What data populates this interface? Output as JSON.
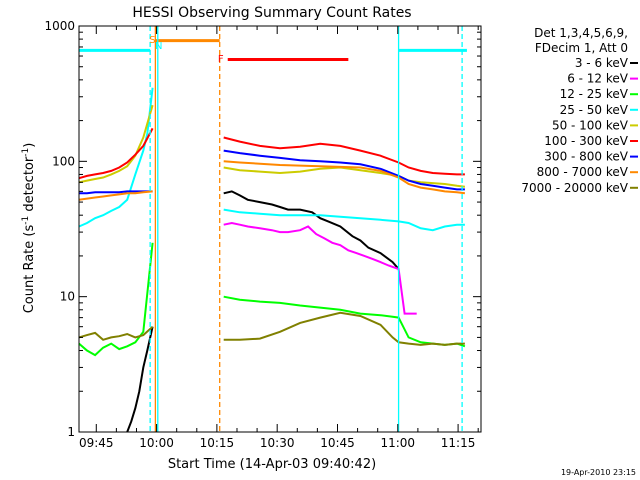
{
  "chart_data": {
    "type": "line",
    "title": "HESSI Observing Summary Count Rates",
    "xlabel": "Start Time (14-Apr-03 09:40:42)",
    "ylabel_main": "Count Rate (s",
    "ylabel_sup1": "-1",
    "ylabel_mid": " detector",
    "ylabel_sup2": "-1",
    "ylabel_end": ")",
    "xlim_minutes": [
      0,
      100
    ],
    "ylim": [
      1,
      1000
    ],
    "yscale": "log",
    "x_ticks": [
      {
        "label": "09:45",
        "min": 4.3
      },
      {
        "label": "10:00",
        "min": 19.3
      },
      {
        "label": "10:15",
        "min": 34.3
      },
      {
        "label": "10:30",
        "min": 49.3
      },
      {
        "label": "10:45",
        "min": 64.3
      },
      {
        "label": "11:00",
        "min": 79.3
      },
      {
        "label": "11:15",
        "min": 94.3
      }
    ],
    "y_ticks": [
      {
        "label": "1",
        "value": 1
      },
      {
        "label": "10",
        "value": 10
      },
      {
        "label": "100",
        "value": 100
      },
      {
        "label": "1000",
        "value": 1000
      }
    ],
    "legend_header": [
      "Det 1,3,4,5,6,9,",
      "FDecim 1, Att 0"
    ],
    "legend_position": "right",
    "series": [
      {
        "name": "3 - 6 keV",
        "color": "#000000",
        "x": [
          12,
          13,
          14,
          15,
          16,
          17,
          18.3,
          36,
          38,
          40,
          42,
          45,
          48,
          50,
          52,
          55,
          58,
          60,
          62,
          65,
          68,
          70,
          72,
          75,
          78,
          79.5
        ],
        "y": [
          1,
          1.2,
          1.5,
          2,
          3,
          4,
          6,
          58,
          60,
          56,
          52,
          50,
          48,
          46,
          44,
          44,
          42,
          38,
          36,
          33,
          28,
          26,
          23,
          21,
          18,
          16
        ]
      },
      {
        "name": "6 - 12 keV",
        "color": "#ff00ff",
        "x": [
          36,
          38,
          40,
          42,
          45,
          48,
          50,
          52,
          55,
          57,
          59,
          61,
          63,
          65,
          67,
          69,
          71,
          73,
          75,
          77,
          79.5,
          81,
          82,
          83,
          84
        ],
        "y": [
          34,
          35,
          34,
          33,
          32,
          31,
          30,
          30,
          31,
          33,
          29,
          27,
          25,
          24,
          22,
          21,
          20,
          19,
          18,
          17,
          16,
          7.5,
          7.5,
          7.5,
          7.5
        ]
      },
      {
        "name": "12 - 25 keV",
        "color": "#00ff00",
        "x": [
          0,
          2,
          4,
          6,
          8,
          10,
          12,
          14,
          16,
          18.3,
          36,
          40,
          45,
          50,
          55,
          60,
          65,
          70,
          75,
          78,
          79.5,
          82,
          85,
          88,
          91,
          94,
          96
        ],
        "y": [
          4.5,
          4,
          3.7,
          4.2,
          4.5,
          4.1,
          4.3,
          4.6,
          5.5,
          25,
          10,
          9.5,
          9.2,
          9,
          8.6,
          8.3,
          8,
          7.5,
          7.3,
          7.1,
          7,
          5,
          4.6,
          4.5,
          4.4,
          4.5,
          4.3
        ]
      },
      {
        "name": "25 - 50 keV",
        "color": "#00ffff",
        "x": [
          0,
          2,
          4,
          6,
          8,
          10,
          12,
          14,
          16,
          17,
          18.3,
          36,
          40,
          45,
          50,
          55,
          60,
          65,
          70,
          75,
          79.5,
          82,
          85,
          88,
          91,
          94,
          96
        ],
        "y": [
          33,
          35,
          38,
          40,
          43,
          46,
          52,
          80,
          120,
          160,
          350,
          44,
          42,
          41,
          40,
          40,
          40,
          39,
          38,
          37,
          36,
          35,
          32,
          31,
          33,
          34,
          34
        ]
      },
      {
        "name": "50 - 100 keV",
        "color": "#cccc00",
        "x": [
          0,
          2,
          4,
          6,
          8,
          10,
          12,
          14,
          16,
          18.3,
          36,
          40,
          45,
          50,
          55,
          60,
          65,
          70,
          75,
          79.5,
          82,
          85,
          88,
          91,
          94,
          96
        ],
        "y": [
          70,
          72,
          74,
          76,
          80,
          85,
          92,
          110,
          150,
          260,
          90,
          86,
          84,
          82,
          84,
          88,
          90,
          86,
          82,
          78,
          72,
          70,
          69,
          68,
          66,
          65
        ]
      },
      {
        "name": "100 - 300 keV",
        "color": "#ff0000",
        "x": [
          0,
          2,
          4,
          6,
          8,
          10,
          12,
          14,
          16,
          18.3,
          36,
          40,
          45,
          50,
          55,
          60,
          65,
          70,
          75,
          79.5,
          82,
          85,
          88,
          91,
          94,
          96
        ],
        "y": [
          75,
          78,
          80,
          82,
          85,
          90,
          98,
          112,
          130,
          175,
          150,
          140,
          130,
          125,
          128,
          135,
          130,
          120,
          110,
          98,
          90,
          85,
          82,
          81,
          80,
          80
        ]
      },
      {
        "name": "300 - 800 keV",
        "color": "#0000ff",
        "x": [
          0,
          2,
          4,
          6,
          8,
          10,
          12,
          14,
          16,
          18.3,
          36,
          40,
          45,
          50,
          55,
          60,
          65,
          70,
          75,
          79.5,
          82,
          85,
          88,
          91,
          94,
          96
        ],
        "y": [
          58,
          58,
          59,
          59,
          59,
          59,
          60,
          60,
          60,
          60,
          120,
          115,
          110,
          106,
          102,
          100,
          98,
          95,
          88,
          78,
          72,
          68,
          66,
          64,
          62,
          62
        ]
      },
      {
        "name": "800 - 7000 keV",
        "color": "#ff8800",
        "x": [
          0,
          2,
          4,
          6,
          8,
          10,
          12,
          14,
          16,
          18.3,
          36,
          40,
          45,
          50,
          55,
          60,
          65,
          70,
          75,
          79.5,
          82,
          85,
          88,
          91,
          94,
          96
        ],
        "y": [
          52,
          53,
          54,
          55,
          56,
          57,
          58,
          58,
          59,
          60,
          100,
          98,
          96,
          94,
          93,
          92,
          91,
          90,
          85,
          76,
          68,
          64,
          62,
          60,
          59,
          58
        ]
      },
      {
        "name": "7000 - 20000 keV",
        "color": "#808000",
        "x": [
          0,
          2,
          4,
          6,
          8,
          10,
          12,
          14,
          16,
          18.3,
          36,
          40,
          45,
          50,
          55,
          60,
          65,
          70,
          75,
          78,
          79.5,
          82,
          85,
          88,
          91,
          94,
          96
        ],
        "y": [
          5,
          5.2,
          5.4,
          4.8,
          5,
          5.1,
          5.3,
          5,
          5.2,
          6,
          4.8,
          4.8,
          4.9,
          5.5,
          6.4,
          7,
          7.6,
          7.2,
          6.2,
          5,
          4.6,
          4.5,
          4.4,
          4.5,
          4.4,
          4.5,
          4.5
        ]
      }
    ],
    "attenuator_markers": [
      {
        "label": "S",
        "min": 19.0,
        "color": "#ff8800"
      },
      {
        "label": "N",
        "min": 19.6,
        "color": "#00ffff"
      },
      {
        "label": "F",
        "min": 36.0,
        "color": "#ff0000"
      }
    ],
    "state_bars": [
      {
        "color": "#00ffff",
        "x0": 0,
        "x1": 17.7,
        "y": 660
      },
      {
        "color": "#ff8800",
        "x0": 19.0,
        "x1": 35.0,
        "y": 780
      },
      {
        "color": "#ff0000",
        "x0": 37.0,
        "x1": 67.0,
        "y": 565
      },
      {
        "color": "#00ffff",
        "x0": 79.5,
        "x1": 96.5,
        "y": 660
      }
    ],
    "vlines": [
      {
        "min": 17.7,
        "color": "#00ffff",
        "style": "dashed"
      },
      {
        "min": 19.0,
        "color": "#ff8800",
        "style": "solid"
      },
      {
        "min": 19.6,
        "color": "#00ffff",
        "style": "solid"
      },
      {
        "min": 35.0,
        "color": "#ff8800",
        "style": "dashed"
      },
      {
        "min": 79.5,
        "color": "#00ffff",
        "style": "solid"
      },
      {
        "min": 95.3,
        "color": "#00ffff",
        "style": "dashed"
      }
    ]
  },
  "footer_timestamp": "19-Apr-2010 23:15"
}
